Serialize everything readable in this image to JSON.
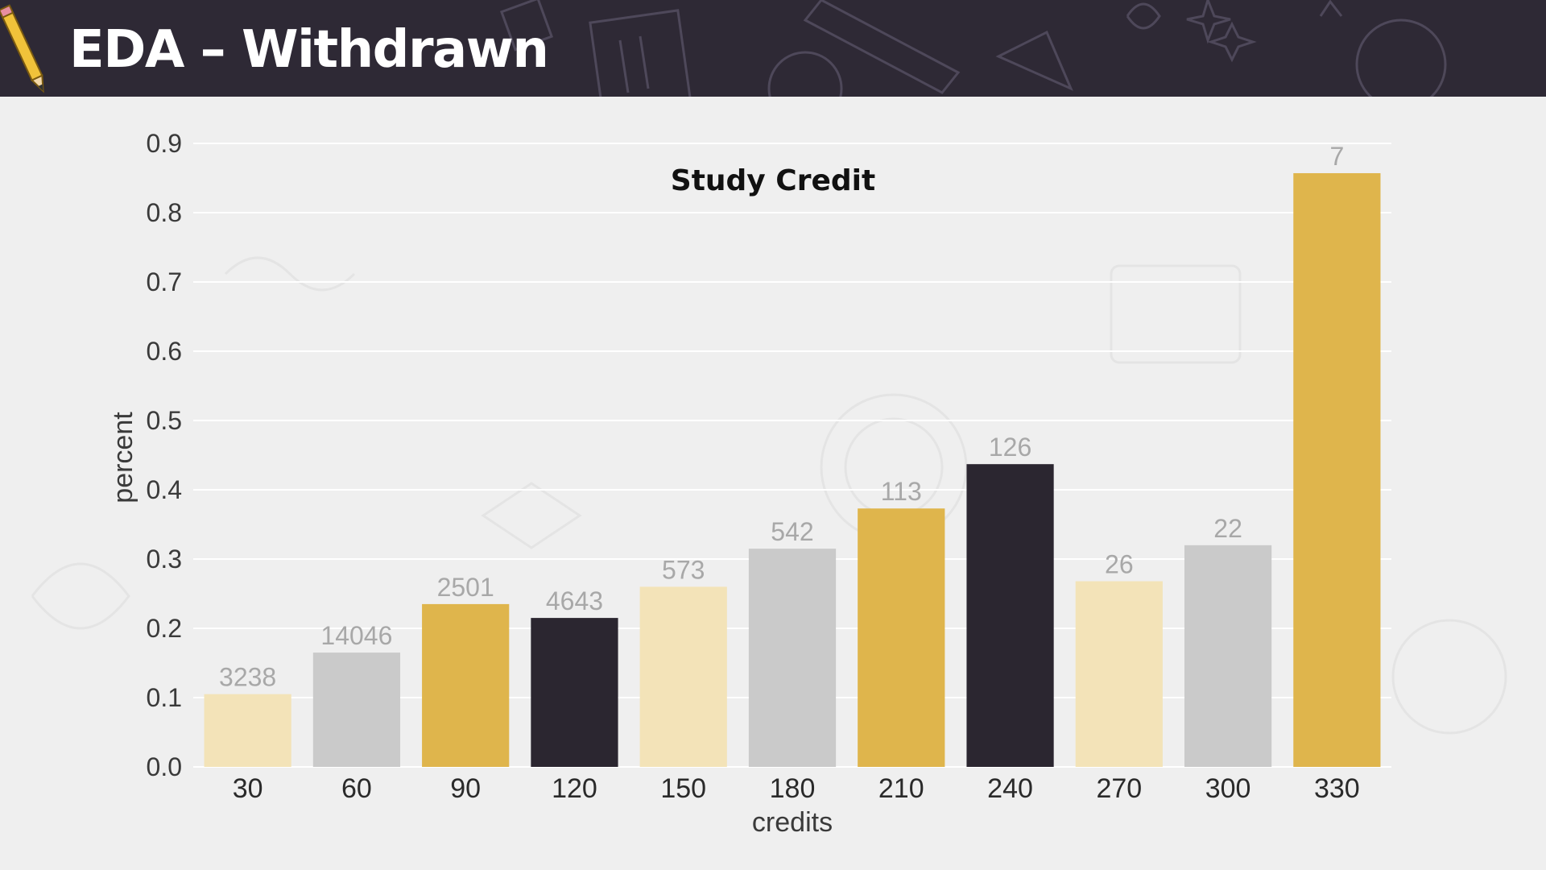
{
  "slide": {
    "title": "EDA – Withdrawn"
  },
  "colors": {
    "header_bg": "#2e2935",
    "page_bg": "#efefef",
    "palette": [
      "#f3e3b8",
      "#cacaca",
      "#dfb54c",
      "#2b2630"
    ]
  },
  "icons": {
    "header_icon": "pencil-icon"
  },
  "chart_data": {
    "type": "bar",
    "title": "Study Credit",
    "xlabel": "credits",
    "ylabel": "percent",
    "ylim": [
      0,
      0.9
    ],
    "yticks": [
      "0.0",
      "0.1",
      "0.2",
      "0.3",
      "0.4",
      "0.5",
      "0.6",
      "0.7",
      "0.8",
      "0.9"
    ],
    "grid": true,
    "categories": [
      "30",
      "60",
      "90",
      "120",
      "150",
      "180",
      "210",
      "240",
      "270",
      "300",
      "330"
    ],
    "values": [
      0.105,
      0.165,
      0.235,
      0.215,
      0.26,
      0.315,
      0.373,
      0.437,
      0.268,
      0.32,
      0.857
    ],
    "counts": [
      "3238",
      "14046",
      "2501",
      "4643",
      "573",
      "542",
      "113",
      "126",
      "26",
      "22",
      "7"
    ]
  }
}
